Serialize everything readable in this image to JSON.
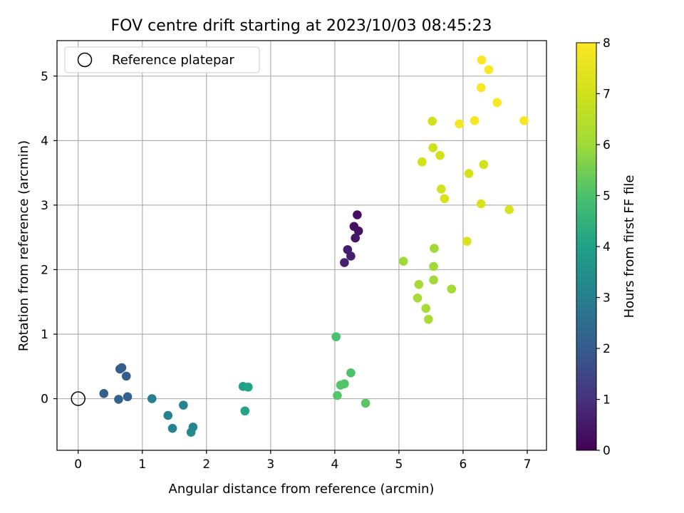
{
  "chart_data": {
    "type": "scatter",
    "title": "FOV centre drift starting at 2023/10/03 08:45:23",
    "xlabel": "Angular distance from reference (arcmin)",
    "ylabel": "Rotation from reference (arcmin)",
    "xlim": [
      -0.33,
      7.3
    ],
    "ylim": [
      -0.8,
      5.55
    ],
    "xticks": [
      0,
      1,
      2,
      3,
      4,
      5,
      6,
      7
    ],
    "yticks": [
      0,
      1,
      2,
      3,
      4,
      5
    ],
    "grid": true,
    "legend": {
      "placement": "top-left",
      "entries": [
        "Reference platepar"
      ]
    },
    "reference_point": {
      "x": 0,
      "y": 0,
      "label": "Reference platepar"
    },
    "colorbar": {
      "label": "Hours from first FF file",
      "range": [
        0,
        8
      ],
      "ticks": [
        0,
        1,
        2,
        3,
        4,
        5,
        6,
        7,
        8
      ],
      "colormap": "viridis"
    },
    "points": [
      {
        "x": 4.35,
        "y": 2.85,
        "c": 0.3
      },
      {
        "x": 4.3,
        "y": 2.67,
        "c": 0.35
      },
      {
        "x": 4.37,
        "y": 2.6,
        "c": 0.4
      },
      {
        "x": 4.32,
        "y": 2.49,
        "c": 0.45
      },
      {
        "x": 4.2,
        "y": 2.31,
        "c": 0.55
      },
      {
        "x": 4.25,
        "y": 2.21,
        "c": 0.6
      },
      {
        "x": 4.15,
        "y": 2.11,
        "c": 0.65
      },
      {
        "x": 0.68,
        "y": 0.48,
        "c": 2.0
      },
      {
        "x": 0.65,
        "y": 0.46,
        "c": 2.0
      },
      {
        "x": 0.75,
        "y": 0.35,
        "c": 2.05
      },
      {
        "x": 0.4,
        "y": 0.08,
        "c": 2.1
      },
      {
        "x": 0.77,
        "y": 0.03,
        "c": 2.15
      },
      {
        "x": 0.63,
        "y": -0.01,
        "c": 2.2
      },
      {
        "x": 1.15,
        "y": 0.0,
        "c": 3.0
      },
      {
        "x": 1.64,
        "y": -0.1,
        "c": 3.05
      },
      {
        "x": 1.4,
        "y": -0.26,
        "c": 3.1
      },
      {
        "x": 1.47,
        "y": -0.46,
        "c": 3.15
      },
      {
        "x": 1.79,
        "y": -0.44,
        "c": 3.2
      },
      {
        "x": 1.76,
        "y": -0.52,
        "c": 3.25
      },
      {
        "x": 2.57,
        "y": 0.19,
        "c": 4.0
      },
      {
        "x": 2.65,
        "y": 0.18,
        "c": 4.05
      },
      {
        "x": 2.6,
        "y": -0.19,
        "c": 4.1
      },
      {
        "x": 4.02,
        "y": 0.96,
        "c": 5.0
      },
      {
        "x": 4.25,
        "y": 0.4,
        "c": 5.05
      },
      {
        "x": 4.15,
        "y": 0.23,
        "c": 5.1
      },
      {
        "x": 4.09,
        "y": 0.21,
        "c": 5.1
      },
      {
        "x": 4.04,
        "y": 0.05,
        "c": 5.15
      },
      {
        "x": 4.48,
        "y": -0.07,
        "c": 5.2
      },
      {
        "x": 5.07,
        "y": 2.13,
        "c": 6.0
      },
      {
        "x": 5.55,
        "y": 2.33,
        "c": 6.0
      },
      {
        "x": 5.54,
        "y": 2.05,
        "c": 6.05
      },
      {
        "x": 5.54,
        "y": 1.84,
        "c": 6.05
      },
      {
        "x": 5.31,
        "y": 1.77,
        "c": 6.1
      },
      {
        "x": 5.82,
        "y": 1.7,
        "c": 6.1
      },
      {
        "x": 5.29,
        "y": 1.56,
        "c": 6.15
      },
      {
        "x": 5.42,
        "y": 1.4,
        "c": 6.15
      },
      {
        "x": 5.46,
        "y": 1.23,
        "c": 6.2
      },
      {
        "x": 5.52,
        "y": 4.3,
        "c": 7.0
      },
      {
        "x": 5.53,
        "y": 3.89,
        "c": 7.0
      },
      {
        "x": 5.64,
        "y": 3.77,
        "c": 7.05
      },
      {
        "x": 5.36,
        "y": 3.67,
        "c": 7.05
      },
      {
        "x": 6.32,
        "y": 3.63,
        "c": 7.1
      },
      {
        "x": 6.09,
        "y": 3.49,
        "c": 7.1
      },
      {
        "x": 5.66,
        "y": 3.25,
        "c": 7.1
      },
      {
        "x": 5.71,
        "y": 3.1,
        "c": 7.15
      },
      {
        "x": 6.28,
        "y": 3.02,
        "c": 7.15
      },
      {
        "x": 6.72,
        "y": 2.93,
        "c": 7.2
      },
      {
        "x": 6.06,
        "y": 2.44,
        "c": 7.2
      },
      {
        "x": 6.29,
        "y": 5.25,
        "c": 8.0
      },
      {
        "x": 6.4,
        "y": 5.1,
        "c": 8.0
      },
      {
        "x": 6.28,
        "y": 4.82,
        "c": 7.95
      },
      {
        "x": 6.53,
        "y": 4.59,
        "c": 7.9
      },
      {
        "x": 6.95,
        "y": 4.31,
        "c": 7.85
      },
      {
        "x": 6.18,
        "y": 4.31,
        "c": 7.85
      },
      {
        "x": 5.94,
        "y": 4.26,
        "c": 7.8
      }
    ]
  },
  "colors": {
    "axis": "#000000",
    "grid": "#b0b0b0",
    "legend_border": "#cccccc"
  }
}
